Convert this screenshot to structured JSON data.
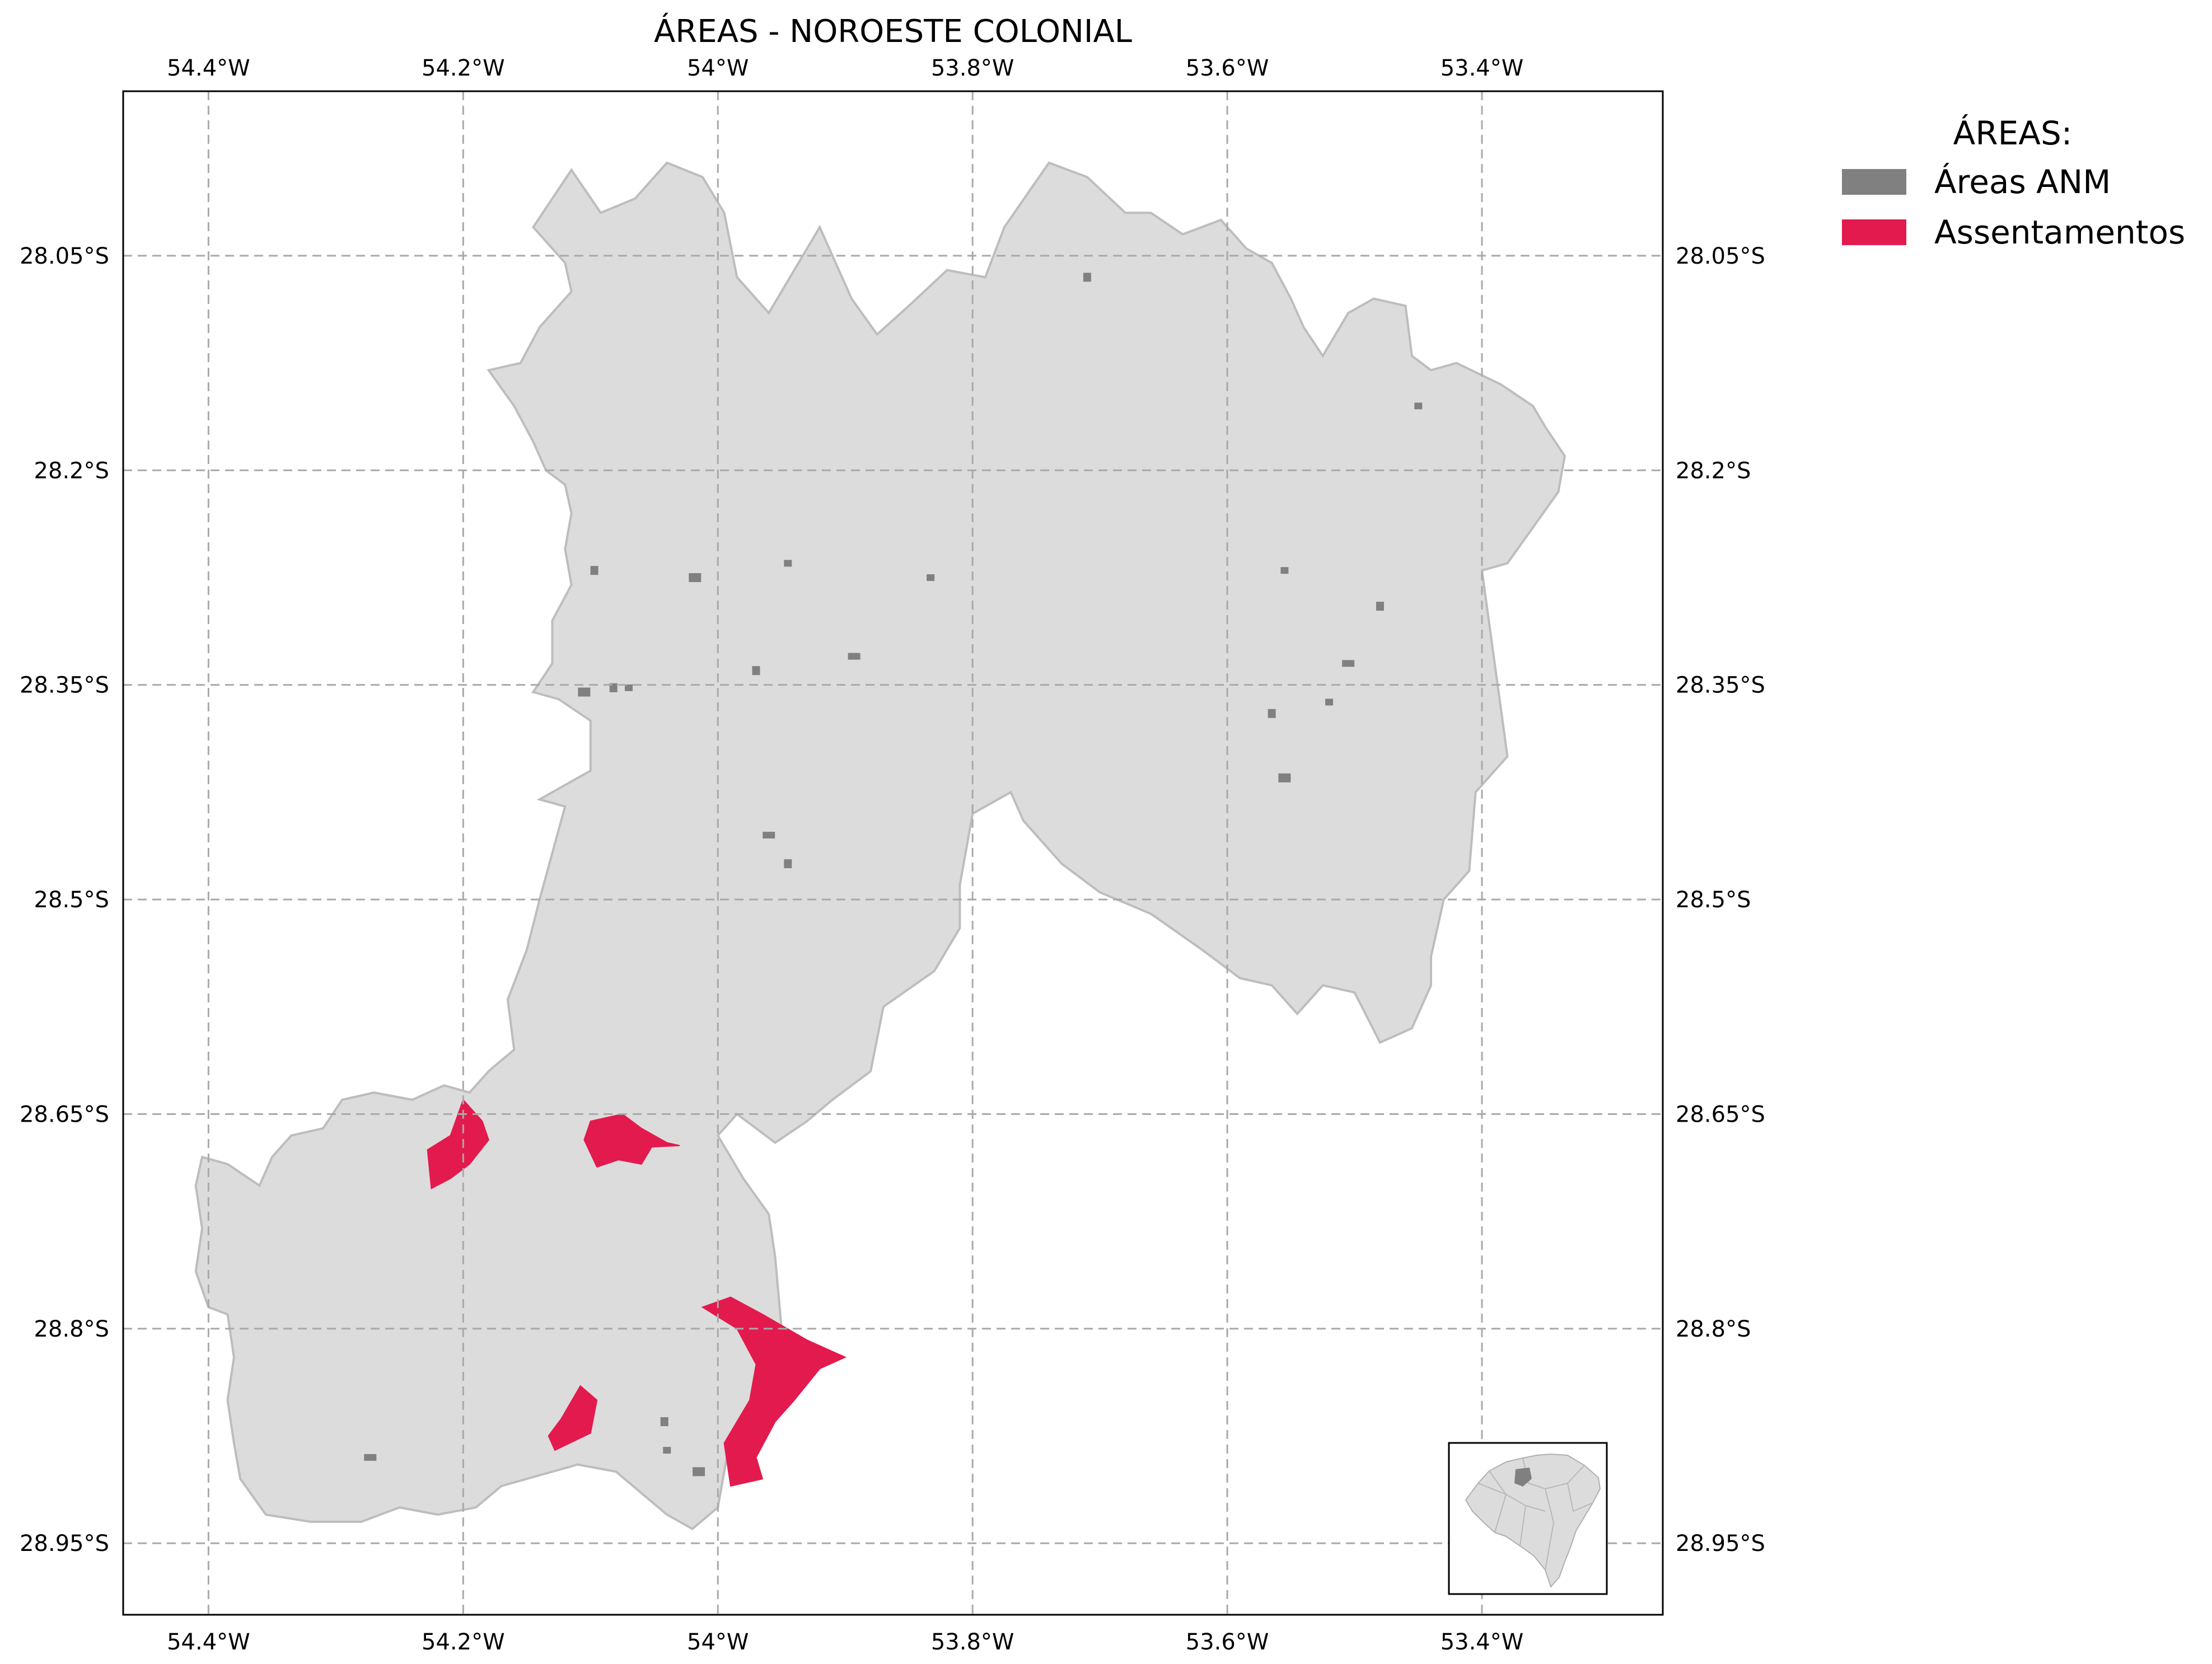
{
  "title": "ÁREAS - NOROESTE COLONIAL",
  "legend": {
    "title": "ÁREAS:",
    "items": [
      {
        "label": "Áreas ANM",
        "color": "#808080"
      },
      {
        "label": "Assentamentos",
        "color": "#e31a4d"
      }
    ]
  },
  "colors": {
    "region_fill": "#dcdcdc",
    "region_stroke": "#bdbdbd",
    "anm": "#808080",
    "assentamentos": "#e31a4d"
  },
  "chart_data": {
    "type": "map",
    "x_ticks": [
      {
        "value": -54.4,
        "label": "54.4°W"
      },
      {
        "value": -54.2,
        "label": "54.2°W"
      },
      {
        "value": -54.0,
        "label": "54°W"
      },
      {
        "value": -53.8,
        "label": "53.8°W"
      },
      {
        "value": -53.6,
        "label": "53.6°W"
      },
      {
        "value": -53.4,
        "label": "53.4°W"
      }
    ],
    "y_ticks": [
      {
        "value": -28.05,
        "label": "28.05°S"
      },
      {
        "value": -28.2,
        "label": "28.2°S"
      },
      {
        "value": -28.35,
        "label": "28.35°S"
      },
      {
        "value": -28.5,
        "label": "28.5°S"
      },
      {
        "value": -28.65,
        "label": "28.65°S"
      },
      {
        "value": -28.8,
        "label": "28.8°S"
      },
      {
        "value": -28.95,
        "label": "28.95°S"
      }
    ],
    "xlim": [
      -54.467,
      -53.258
    ],
    "ylim": [
      -29.0,
      -27.935
    ],
    "grid": true,
    "legend_position": "top-right, outside",
    "inset": "state locator map, bottom-right",
    "region_outline": [
      [
        -54.145,
        -28.03
      ],
      [
        -54.115,
        -27.99
      ],
      [
        -54.092,
        -28.02
      ],
      [
        -54.065,
        -28.01
      ],
      [
        -54.04,
        -27.985
      ],
      [
        -54.012,
        -27.995
      ],
      [
        -53.995,
        -28.02
      ],
      [
        -53.985,
        -28.065
      ],
      [
        -53.96,
        -28.09
      ],
      [
        -53.92,
        -28.03
      ],
      [
        -53.895,
        -28.08
      ],
      [
        -53.875,
        -28.105
      ],
      [
        -53.85,
        -28.085
      ],
      [
        -53.82,
        -28.06
      ],
      [
        -53.79,
        -28.065
      ],
      [
        -53.775,
        -28.03
      ],
      [
        -53.74,
        -27.985
      ],
      [
        -53.71,
        -27.995
      ],
      [
        -53.68,
        -28.02
      ],
      [
        -53.66,
        -28.02
      ],
      [
        -53.635,
        -28.035
      ],
      [
        -53.605,
        -28.025
      ],
      [
        -53.585,
        -28.045
      ],
      [
        -53.565,
        -28.055
      ],
      [
        -53.55,
        -28.08
      ],
      [
        -53.54,
        -28.1
      ],
      [
        -53.525,
        -28.12
      ],
      [
        -53.505,
        -28.09
      ],
      [
        -53.485,
        -28.08
      ],
      [
        -53.46,
        -28.085
      ],
      [
        -53.455,
        -28.12
      ],
      [
        -53.44,
        -28.13
      ],
      [
        -53.42,
        -28.125
      ],
      [
        -53.385,
        -28.14
      ],
      [
        -53.36,
        -28.155
      ],
      [
        -53.35,
        -28.17
      ],
      [
        -53.335,
        -28.19
      ],
      [
        -53.34,
        -28.215
      ],
      [
        -53.36,
        -28.24
      ],
      [
        -53.38,
        -28.265
      ],
      [
        -53.4,
        -28.27
      ],
      [
        -53.38,
        -28.4
      ],
      [
        -53.405,
        -28.425
      ],
      [
        -53.41,
        -28.48
      ],
      [
        -53.43,
        -28.5
      ],
      [
        -53.44,
        -28.54
      ],
      [
        -53.44,
        -28.56
      ],
      [
        -53.455,
        -28.59
      ],
      [
        -53.48,
        -28.6
      ],
      [
        -53.5,
        -28.565
      ],
      [
        -53.525,
        -28.56
      ],
      [
        -53.545,
        -28.58
      ],
      [
        -53.565,
        -28.56
      ],
      [
        -53.59,
        -28.555
      ],
      [
        -53.62,
        -28.535
      ],
      [
        -53.66,
        -28.51
      ],
      [
        -53.7,
        -28.495
      ],
      [
        -53.73,
        -28.475
      ],
      [
        -53.76,
        -28.445
      ],
      [
        -53.77,
        -28.425
      ],
      [
        -53.8,
        -28.44
      ],
      [
        -53.81,
        -28.49
      ],
      [
        -53.81,
        -28.52
      ],
      [
        -53.83,
        -28.55
      ],
      [
        -53.87,
        -28.575
      ],
      [
        -53.88,
        -28.62
      ],
      [
        -53.91,
        -28.64
      ],
      [
        -53.93,
        -28.655
      ],
      [
        -53.955,
        -28.67
      ],
      [
        -53.985,
        -28.65
      ],
      [
        -54.0,
        -28.665
      ],
      [
        -53.98,
        -28.695
      ],
      [
        -53.96,
        -28.72
      ],
      [
        -53.955,
        -28.75
      ],
      [
        -53.95,
        -28.8
      ],
      [
        -53.94,
        -28.82
      ],
      [
        -53.97,
        -28.85
      ],
      [
        -53.99,
        -28.875
      ],
      [
        -53.995,
        -28.9
      ],
      [
        -54.0,
        -28.925
      ],
      [
        -54.02,
        -28.94
      ],
      [
        -54.04,
        -28.93
      ],
      [
        -54.06,
        -28.915
      ],
      [
        -54.08,
        -28.9
      ],
      [
        -54.11,
        -28.895
      ],
      [
        -54.15,
        -28.905
      ],
      [
        -54.17,
        -28.91
      ],
      [
        -54.19,
        -28.925
      ],
      [
        -54.22,
        -28.93
      ],
      [
        -54.25,
        -28.925
      ],
      [
        -54.28,
        -28.935
      ],
      [
        -54.32,
        -28.935
      ],
      [
        -54.355,
        -28.93
      ],
      [
        -54.375,
        -28.905
      ],
      [
        -54.38,
        -28.88
      ],
      [
        -54.385,
        -28.85
      ],
      [
        -54.38,
        -28.82
      ],
      [
        -54.385,
        -28.79
      ],
      [
        -54.4,
        -28.785
      ],
      [
        -54.41,
        -28.76
      ],
      [
        -54.405,
        -28.73
      ],
      [
        -54.41,
        -28.7
      ],
      [
        -54.405,
        -28.68
      ],
      [
        -54.385,
        -28.685
      ],
      [
        -54.36,
        -28.7
      ],
      [
        -54.35,
        -28.68
      ],
      [
        -54.335,
        -28.665
      ],
      [
        -54.31,
        -28.66
      ],
      [
        -54.295,
        -28.64
      ],
      [
        -54.27,
        -28.635
      ],
      [
        -54.24,
        -28.64
      ],
      [
        -54.215,
        -28.63
      ],
      [
        -54.195,
        -28.635
      ],
      [
        -54.18,
        -28.62
      ],
      [
        -54.16,
        -28.605
      ],
      [
        -54.165,
        -28.57
      ],
      [
        -54.15,
        -28.535
      ],
      [
        -54.14,
        -28.5
      ],
      [
        -54.12,
        -28.435
      ],
      [
        -54.14,
        -28.43
      ],
      [
        -54.1,
        -28.41
      ],
      [
        -54.1,
        -28.375
      ],
      [
        -54.125,
        -28.36
      ],
      [
        -54.145,
        -28.355
      ],
      [
        -54.13,
        -28.335
      ],
      [
        -54.13,
        -28.305
      ],
      [
        -54.115,
        -28.28
      ],
      [
        -54.12,
        -28.255
      ],
      [
        -54.115,
        -28.23
      ],
      [
        -54.12,
        -28.21
      ],
      [
        -54.135,
        -28.2
      ],
      [
        -54.145,
        -28.18
      ],
      [
        -54.16,
        -28.155
      ],
      [
        -54.18,
        -28.13
      ],
      [
        -54.155,
        -28.125
      ],
      [
        -54.14,
        -28.1
      ],
      [
        -54.115,
        -28.075
      ],
      [
        -54.12,
        -28.055
      ],
      [
        -54.135,
        -28.04
      ],
      [
        -54.145,
        -28.03
      ]
    ],
    "anm_areas": [
      [
        -54.018,
        -28.275
      ],
      [
        -53.945,
        -28.265
      ],
      [
        -53.97,
        -28.34
      ],
      [
        -53.893,
        -28.33
      ],
      [
        -54.082,
        -28.352
      ],
      [
        -54.07,
        -28.352
      ],
      [
        -54.105,
        -28.355
      ],
      [
        -53.555,
        -28.27
      ],
      [
        -53.48,
        -28.295
      ],
      [
        -53.505,
        -28.335
      ],
      [
        -53.565,
        -28.37
      ],
      [
        -53.52,
        -28.362
      ],
      [
        -53.555,
        -28.415
      ],
      [
        -53.45,
        -28.155
      ],
      [
        -53.71,
        -28.065
      ],
      [
        -54.273,
        -28.89
      ],
      [
        -54.042,
        -28.865
      ],
      [
        -54.04,
        -28.885
      ],
      [
        -54.015,
        -28.9
      ],
      [
        -53.833,
        -28.275
      ],
      [
        -54.097,
        -28.27
      ],
      [
        -53.96,
        -28.455
      ],
      [
        -53.945,
        -28.475
      ]
    ],
    "assentamentos": [
      {
        "name": "",
        "polygon": [
          [
            -54.228,
            -28.675
          ],
          [
            -54.21,
            -28.665
          ],
          [
            -54.2,
            -28.64
          ],
          [
            -54.185,
            -28.655
          ],
          [
            -54.18,
            -28.668
          ],
          [
            -54.195,
            -28.685
          ],
          [
            -54.21,
            -28.695
          ],
          [
            -54.225,
            -28.702
          ]
        ]
      },
      {
        "name": "",
        "polygon": [
          [
            -54.1,
            -28.655
          ],
          [
            -54.075,
            -28.65
          ],
          [
            -54.06,
            -28.66
          ],
          [
            -54.04,
            -28.67
          ],
          [
            -54.03,
            -28.672
          ],
          [
            -54.052,
            -28.673
          ],
          [
            -54.06,
            -28.685
          ],
          [
            -54.078,
            -28.682
          ],
          [
            -54.095,
            -28.687
          ],
          [
            -54.105,
            -28.668
          ]
        ]
      },
      {
        "name": "",
        "polygon": [
          [
            -54.012,
            -28.785
          ],
          [
            -53.99,
            -28.778
          ],
          [
            -53.965,
            -28.79
          ],
          [
            -53.93,
            -28.808
          ],
          [
            -53.9,
            -28.82
          ],
          [
            -53.92,
            -28.828
          ],
          [
            -53.94,
            -28.85
          ],
          [
            -53.955,
            -28.865
          ],
          [
            -53.97,
            -28.89
          ],
          [
            -53.965,
            -28.905
          ],
          [
            -53.99,
            -28.91
          ],
          [
            -53.995,
            -28.88
          ],
          [
            -53.975,
            -28.85
          ],
          [
            -53.97,
            -28.825
          ],
          [
            -53.985,
            -28.8
          ]
        ]
      },
      {
        "name": "",
        "polygon": [
          [
            -54.128,
            -28.885
          ],
          [
            -54.1,
            -28.873
          ],
          [
            -54.095,
            -28.85
          ],
          [
            -54.108,
            -28.84
          ],
          [
            -54.123,
            -28.863
          ],
          [
            -54.133,
            -28.875
          ]
        ]
      }
    ]
  }
}
